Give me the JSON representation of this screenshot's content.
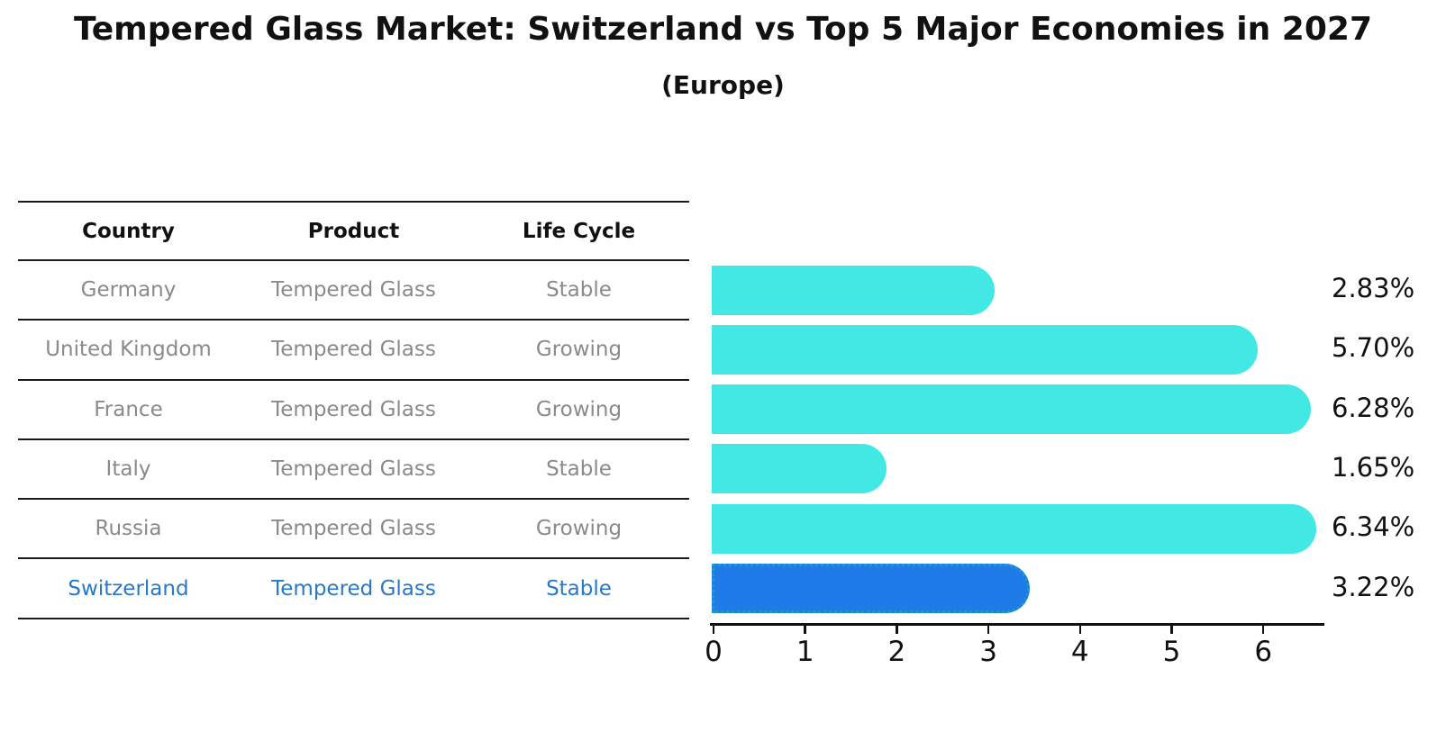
{
  "title": "Tempered Glass Market: Switzerland vs Top 5 Major Economies in 2027",
  "subtitle": "(Europe)",
  "table": {
    "headers": [
      "Country",
      "Product",
      "Life Cycle"
    ],
    "rows": [
      {
        "country": "Germany",
        "product": "Tempered Glass",
        "life_cycle": "Stable",
        "highlight": false
      },
      {
        "country": "United Kingdom",
        "product": "Tempered Glass",
        "life_cycle": "Growing",
        "highlight": false
      },
      {
        "country": "France",
        "product": "Tempered Glass",
        "life_cycle": "Growing",
        "highlight": false
      },
      {
        "country": "Italy",
        "product": "Tempered Glass",
        "life_cycle": "Stable",
        "highlight": false
      },
      {
        "country": "Russia",
        "product": "Tempered Glass",
        "life_cycle": "Growing",
        "highlight": false
      },
      {
        "country": "Switzerland",
        "product": "Tempered Glass",
        "life_cycle": "Stable",
        "highlight": true
      }
    ]
  },
  "chart_data": {
    "type": "bar",
    "orientation": "horizontal",
    "title": "Tempered Glass Market: Switzerland vs Top 5 Major Economies in 2027",
    "subtitle": "(Europe)",
    "categories": [
      "Germany",
      "United Kingdom",
      "France",
      "Italy",
      "Russia",
      "Switzerland"
    ],
    "values": [
      2.83,
      5.7,
      6.28,
      1.65,
      6.34,
      3.22
    ],
    "value_labels": [
      "2.83%",
      "5.70%",
      "6.28%",
      "1.65%",
      "6.34%",
      "3.22%"
    ],
    "x_ticks": [
      "0",
      "1",
      "2",
      "3",
      "4",
      "5",
      "6"
    ],
    "xlim": [
      0,
      6.68
    ],
    "xlabel": "",
    "ylabel": "",
    "grid": false,
    "legend": "none",
    "highlight_index": 5
  },
  "colors": {
    "bar_default": "#42e8e4",
    "bar_highlight": "#1e7be8",
    "highlight_border": "#1f9ac2",
    "highlight_text": "#2878c8",
    "table_text": "#8a8a8a",
    "heading_text": "#111111"
  }
}
